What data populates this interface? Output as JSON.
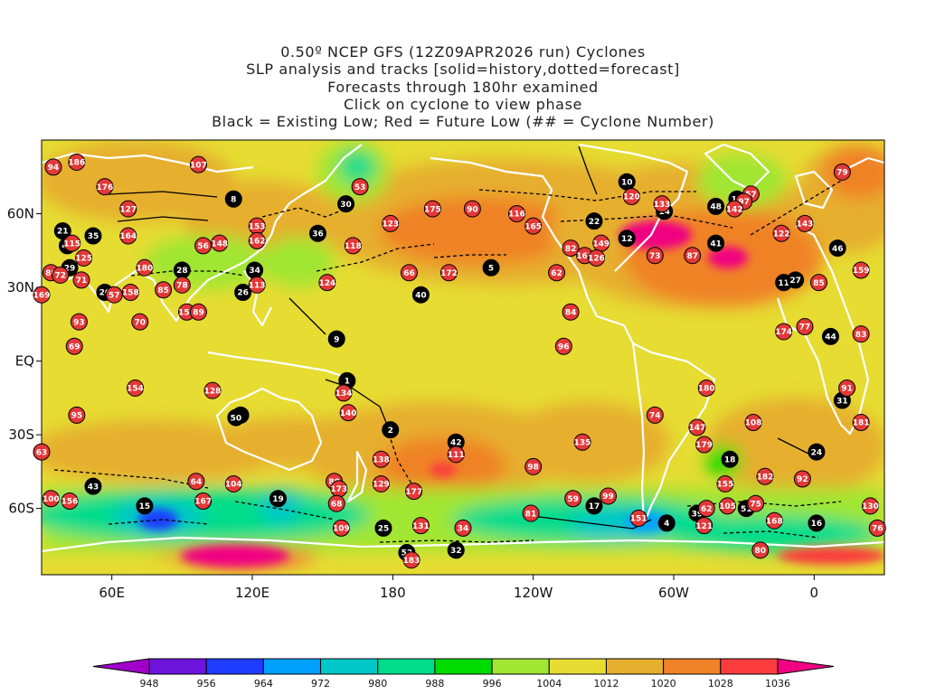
{
  "titles": [
    "0.50º NCEP GFS (12Z09APR2026 run) Cyclones",
    "SLP analysis and tracks [solid=history,dotted=forecast]",
    "Forecasts through 180hr examined",
    "Click on cyclone to view phase",
    "Black = Existing Low; Red = Future Low (## = Cyclone Number)"
  ],
  "map": {
    "lon_range": [
      30,
      390
    ],
    "lat_range": [
      -87,
      90
    ],
    "x_ticks": [
      {
        "lon": 60,
        "label": "60E"
      },
      {
        "lon": 120,
        "label": "120E"
      },
      {
        "lon": 180,
        "label": "180"
      },
      {
        "lon": 240,
        "label": "120W"
      },
      {
        "lon": 300,
        "label": "60W"
      },
      {
        "lon": 360,
        "label": "0"
      }
    ],
    "y_ticks": [
      {
        "lat": 60,
        "label": "60N"
      },
      {
        "lat": 30,
        "label": "30N"
      },
      {
        "lat": 0,
        "label": "EQ"
      },
      {
        "lat": -30,
        "label": "30S"
      },
      {
        "lat": -60,
        "label": "60S"
      }
    ]
  },
  "colorbar": {
    "levels": [
      "948",
      "956",
      "964",
      "972",
      "980",
      "988",
      "996",
      "1004",
      "1012",
      "1020",
      "1028",
      "1036"
    ],
    "colors": [
      "#a000c8",
      "#6e14dc",
      "#1e3cff",
      "#00a0ff",
      "#00c8c8",
      "#00dc8c",
      "#00dc00",
      "#a0e632",
      "#e6dc32",
      "#e6af2d",
      "#f08228",
      "#fa3c3c",
      "#f00082"
    ]
  },
  "colors": {
    "existing_low": "#000000",
    "future_low": "#e23838",
    "coast": "#ffffff",
    "track": "#000000"
  },
  "cyclones": [
    {
      "id": "1",
      "type": "existing",
      "lon": 160.5,
      "lat": -8
    },
    {
      "id": "2",
      "type": "existing",
      "lon": 179,
      "lat": -28
    },
    {
      "id": "3",
      "type": "existing",
      "lon": 115,
      "lat": -22
    },
    {
      "id": "4",
      "type": "existing",
      "lon": 297,
      "lat": -66
    },
    {
      "id": "5",
      "type": "existing",
      "lon": 222,
      "lat": 38
    },
    {
      "id": "8",
      "type": "existing",
      "lon": 112,
      "lat": 66
    },
    {
      "id": "9",
      "type": "existing",
      "lon": 156,
      "lat": 9
    },
    {
      "id": "10",
      "type": "existing",
      "lon": 280,
      "lat": 73
    },
    {
      "id": "11",
      "type": "existing",
      "lon": 347,
      "lat": 32
    },
    {
      "id": "12",
      "type": "existing",
      "lon": 280,
      "lat": 50
    },
    {
      "id": "13",
      "type": "existing",
      "lon": 327,
      "lat": 66
    },
    {
      "id": "14",
      "type": "existing",
      "lon": 296,
      "lat": 61
    },
    {
      "id": "15",
      "type": "existing",
      "lon": 74,
      "lat": -59
    },
    {
      "id": "16",
      "type": "existing",
      "lon": 361,
      "lat": -66
    },
    {
      "id": "17",
      "type": "existing",
      "lon": 266,
      "lat": -59
    },
    {
      "id": "18",
      "type": "existing",
      "lon": 324,
      "lat": -40
    },
    {
      "id": "19",
      "type": "existing",
      "lon": 131,
      "lat": -56
    },
    {
      "id": "20",
      "type": "existing",
      "lon": 57,
      "lat": 28
    },
    {
      "id": "21",
      "type": "existing",
      "lon": 39,
      "lat": 53
    },
    {
      "id": "22",
      "type": "existing",
      "lon": 266,
      "lat": 57
    },
    {
      "id": "24",
      "type": "existing",
      "lon": 361,
      "lat": -37
    },
    {
      "id": "25",
      "type": "existing",
      "lon": 176,
      "lat": -68
    },
    {
      "id": "26",
      "type": "existing",
      "lon": 116,
      "lat": 28
    },
    {
      "id": "27",
      "type": "existing",
      "lon": 352,
      "lat": 33
    },
    {
      "id": "28",
      "type": "existing",
      "lon": 90,
      "lat": 37
    },
    {
      "id": "29",
      "type": "existing",
      "lon": 42,
      "lat": 38
    },
    {
      "id": "30",
      "type": "existing",
      "lon": 160,
      "lat": 64
    },
    {
      "id": "31",
      "type": "existing",
      "lon": 372,
      "lat": -16
    },
    {
      "id": "32",
      "type": "existing",
      "lon": 207,
      "lat": -77
    },
    {
      "id": "34",
      "type": "existing",
      "lon": 121,
      "lat": 37
    },
    {
      "id": "35",
      "type": "existing",
      "lon": 52,
      "lat": 51
    },
    {
      "id": "36",
      "type": "existing",
      "lon": 148,
      "lat": 52
    },
    {
      "id": "39",
      "type": "existing",
      "lon": 310,
      "lat": -62
    },
    {
      "id": "40",
      "type": "existing",
      "lon": 192,
      "lat": 27
    },
    {
      "id": "41",
      "type": "existing",
      "lon": 318,
      "lat": 48
    },
    {
      "id": "42",
      "type": "existing",
      "lon": 207,
      "lat": -33
    },
    {
      "id": "43",
      "type": "existing",
      "lon": 52,
      "lat": -51
    },
    {
      "id": "44",
      "type": "existing",
      "lon": 367,
      "lat": 10
    },
    {
      "id": "46",
      "type": "existing",
      "lon": 370,
      "lat": 46
    },
    {
      "id": "47",
      "type": "existing",
      "lon": 41,
      "lat": 47
    },
    {
      "id": "48",
      "type": "existing",
      "lon": 318,
      "lat": 63
    },
    {
      "id": "50",
      "type": "existing",
      "lon": 113,
      "lat": -23
    },
    {
      "id": "51",
      "type": "existing",
      "lon": 331,
      "lat": -60
    },
    {
      "id": "52",
      "type": "existing",
      "lon": 186,
      "lat": -78
    },
    {
      "id": "94",
      "type": "future",
      "lon": 35,
      "lat": 79
    },
    {
      "id": "186",
      "type": "future",
      "lon": 45,
      "lat": 81
    },
    {
      "id": "107",
      "type": "future",
      "lon": 97,
      "lat": 80
    },
    {
      "id": "176",
      "type": "future",
      "lon": 57,
      "lat": 71
    },
    {
      "id": "127",
      "type": "future",
      "lon": 67,
      "lat": 62
    },
    {
      "id": "53",
      "type": "future",
      "lon": 166,
      "lat": 71
    },
    {
      "id": "175",
      "type": "future",
      "lon": 197,
      "lat": 62
    },
    {
      "id": "90",
      "type": "future",
      "lon": 214,
      "lat": 62
    },
    {
      "id": "116",
      "type": "future",
      "lon": 233,
      "lat": 60
    },
    {
      "id": "120",
      "type": "future",
      "lon": 282,
      "lat": 67
    },
    {
      "id": "133",
      "type": "future",
      "lon": 295,
      "lat": 64
    },
    {
      "id": "57",
      "type": "future",
      "lon": 333,
      "lat": 68
    },
    {
      "id": "97",
      "type": "future",
      "lon": 330,
      "lat": 65
    },
    {
      "id": "142",
      "type": "future",
      "lon": 326,
      "lat": 62
    },
    {
      "id": "79",
      "type": "future",
      "lon": 372,
      "lat": 77
    },
    {
      "id": "165",
      "type": "future",
      "lon": 240,
      "lat": 55
    },
    {
      "id": "123",
      "type": "future",
      "lon": 179,
      "lat": 56
    },
    {
      "id": "153",
      "type": "future",
      "lon": 122,
      "lat": 55
    },
    {
      "id": "164",
      "type": "future",
      "lon": 67,
      "lat": 51
    },
    {
      "id": "115",
      "type": "future",
      "lon": 43,
      "lat": 48
    },
    {
      "id": "148",
      "type": "future",
      "lon": 106,
      "lat": 48
    },
    {
      "id": "56",
      "type": "future",
      "lon": 99,
      "lat": 47
    },
    {
      "id": "162",
      "type": "future",
      "lon": 122,
      "lat": 49
    },
    {
      "id": "118",
      "type": "future",
      "lon": 163,
      "lat": 47
    },
    {
      "id": "143",
      "type": "future",
      "lon": 356,
      "lat": 56
    },
    {
      "id": "122",
      "type": "future",
      "lon": 346,
      "lat": 52
    },
    {
      "id": "149",
      "type": "future",
      "lon": 269,
      "lat": 48
    },
    {
      "id": "82",
      "type": "future",
      "lon": 256,
      "lat": 46
    },
    {
      "id": "161",
      "type": "future",
      "lon": 262,
      "lat": 43
    },
    {
      "id": "126",
      "type": "future",
      "lon": 267,
      "lat": 42
    },
    {
      "id": "73",
      "type": "future",
      "lon": 292,
      "lat": 43
    },
    {
      "id": "87",
      "type": "future",
      "lon": 308,
      "lat": 43
    },
    {
      "id": "125",
      "type": "future",
      "lon": 48,
      "lat": 42
    },
    {
      "id": "180",
      "type": "future",
      "lon": 74,
      "lat": 38
    },
    {
      "id": "78",
      "type": "future",
      "lon": 90,
      "lat": 31
    },
    {
      "id": "85",
      "type": "future",
      "lon": 82,
      "lat": 29
    },
    {
      "id": "86",
      "type": "future",
      "lon": 34,
      "lat": 36
    },
    {
      "id": "72",
      "type": "future",
      "lon": 38,
      "lat": 35
    },
    {
      "id": "71",
      "type": "future",
      "lon": 47,
      "lat": 33
    },
    {
      "id": "158",
      "type": "future",
      "lon": 68,
      "lat": 28
    },
    {
      "id": "57b",
      "label": "57",
      "type": "future",
      "lon": 61,
      "lat": 27
    },
    {
      "id": "113",
      "type": "future",
      "lon": 122,
      "lat": 31
    },
    {
      "id": "124",
      "type": "future",
      "lon": 152,
      "lat": 32
    },
    {
      "id": "66",
      "type": "future",
      "lon": 187,
      "lat": 36
    },
    {
      "id": "172",
      "type": "future",
      "lon": 204,
      "lat": 36
    },
    {
      "id": "62",
      "type": "future",
      "lon": 250,
      "lat": 36
    },
    {
      "id": "159",
      "type": "future",
      "lon": 380,
      "lat": 37
    },
    {
      "id": "85b",
      "label": "85",
      "type": "future",
      "lon": 362,
      "lat": 32
    },
    {
      "id": "169",
      "type": "future",
      "lon": 30,
      "lat": 27
    },
    {
      "id": "152",
      "type": "future",
      "lon": 92,
      "lat": 20
    },
    {
      "id": "89",
      "type": "future",
      "lon": 97,
      "lat": 20
    },
    {
      "id": "93",
      "type": "future",
      "lon": 46,
      "lat": 16
    },
    {
      "id": "70",
      "type": "future",
      "lon": 72,
      "lat": 16
    },
    {
      "id": "84",
      "type": "future",
      "lon": 256,
      "lat": 20
    },
    {
      "id": "77",
      "type": "future",
      "lon": 356,
      "lat": 14
    },
    {
      "id": "174",
      "type": "future",
      "lon": 347,
      "lat": 12
    },
    {
      "id": "83",
      "type": "future",
      "lon": 380,
      "lat": 11
    },
    {
      "id": "69",
      "type": "future",
      "lon": 44,
      "lat": 6
    },
    {
      "id": "96",
      "type": "future",
      "lon": 253,
      "lat": 6
    },
    {
      "id": "154",
      "type": "future",
      "lon": 70,
      "lat": -11
    },
    {
      "id": "128",
      "type": "future",
      "lon": 103,
      "lat": -12
    },
    {
      "id": "134",
      "type": "future",
      "lon": 159,
      "lat": -13
    },
    {
      "id": "180b",
      "label": "180",
      "type": "future",
      "lon": 314,
      "lat": -11
    },
    {
      "id": "91",
      "type": "future",
      "lon": 374,
      "lat": -11
    },
    {
      "id": "140",
      "type": "future",
      "lon": 161,
      "lat": -21
    },
    {
      "id": "74",
      "type": "future",
      "lon": 292,
      "lat": -22
    },
    {
      "id": "95",
      "type": "future",
      "lon": 45,
      "lat": -22
    },
    {
      "id": "108",
      "type": "future",
      "lon": 334,
      "lat": -25
    },
    {
      "id": "147",
      "type": "future",
      "lon": 310,
      "lat": -27
    },
    {
      "id": "181",
      "type": "future",
      "lon": 380,
      "lat": -25
    },
    {
      "id": "135",
      "type": "future",
      "lon": 261,
      "lat": -33
    },
    {
      "id": "179",
      "type": "future",
      "lon": 313,
      "lat": -34
    },
    {
      "id": "111",
      "type": "future",
      "lon": 207,
      "lat": -38
    },
    {
      "id": "63",
      "type": "future",
      "lon": 30,
      "lat": -37
    },
    {
      "id": "138",
      "type": "future",
      "lon": 175,
      "lat": -40
    },
    {
      "id": "98",
      "type": "future",
      "lon": 240,
      "lat": -43
    },
    {
      "id": "182",
      "type": "future",
      "lon": 339,
      "lat": -47
    },
    {
      "id": "92",
      "type": "future",
      "lon": 355,
      "lat": -48
    },
    {
      "id": "64",
      "type": "future",
      "lon": 96,
      "lat": -49
    },
    {
      "id": "104",
      "type": "future",
      "lon": 112,
      "lat": -50
    },
    {
      "id": "88",
      "type": "future",
      "lon": 155,
      "lat": -49
    },
    {
      "id": "129",
      "type": "future",
      "lon": 175,
      "lat": -50
    },
    {
      "id": "155",
      "type": "future",
      "lon": 322,
      "lat": -50
    },
    {
      "id": "173",
      "type": "future",
      "lon": 157,
      "lat": -52
    },
    {
      "id": "177",
      "type": "future",
      "lon": 189,
      "lat": -53
    },
    {
      "id": "100",
      "type": "future",
      "lon": 34,
      "lat": -56
    },
    {
      "id": "156",
      "type": "future",
      "lon": 42,
      "lat": -57
    },
    {
      "id": "167",
      "type": "future",
      "lon": 99,
      "lat": -57
    },
    {
      "id": "68",
      "type": "future",
      "lon": 156,
      "lat": -58
    },
    {
      "id": "59",
      "type": "future",
      "lon": 257,
      "lat": -56
    },
    {
      "id": "99",
      "type": "future",
      "lon": 272,
      "lat": -55
    },
    {
      "id": "75",
      "type": "future",
      "lon": 335,
      "lat": -58
    },
    {
      "id": "130",
      "type": "future",
      "lon": 384,
      "lat": -59
    },
    {
      "id": "105",
      "type": "future",
      "lon": 323,
      "lat": -59
    },
    {
      "id": "62b",
      "label": "62",
      "type": "future",
      "lon": 314,
      "lat": -60
    },
    {
      "id": "81",
      "type": "future",
      "lon": 239,
      "lat": -62
    },
    {
      "id": "151",
      "type": "future",
      "lon": 285,
      "lat": -64
    },
    {
      "id": "168",
      "type": "future",
      "lon": 343,
      "lat": -65
    },
    {
      "id": "121",
      "type": "future",
      "lon": 313,
      "lat": -67
    },
    {
      "id": "109",
      "type": "future",
      "lon": 158,
      "lat": -68
    },
    {
      "id": "131",
      "type": "future",
      "lon": 192,
      "lat": -67
    },
    {
      "id": "34b",
      "label": "34",
      "type": "future",
      "lon": 210,
      "lat": -68
    },
    {
      "id": "76",
      "type": "future",
      "lon": 387,
      "lat": -68
    },
    {
      "id": "80",
      "type": "future",
      "lon": 337,
      "lat": -77
    },
    {
      "id": "183",
      "type": "future",
      "lon": 188,
      "lat": -81
    }
  ]
}
